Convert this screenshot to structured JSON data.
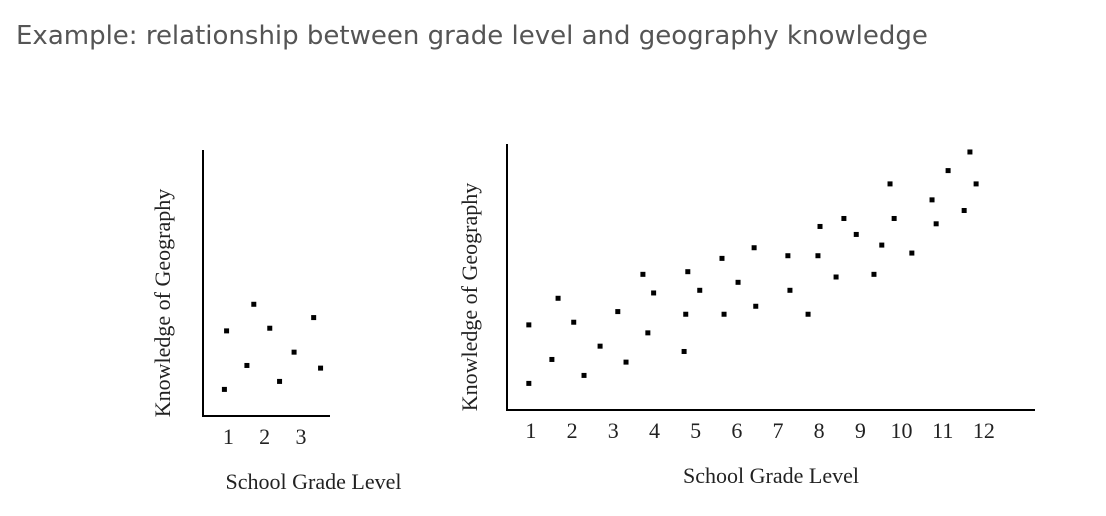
{
  "header": {
    "title": "Example: relationship between grade level and geography knowledge"
  },
  "chart_data": [
    {
      "type": "scatter",
      "color": "#000000",
      "xlabel": "School Grade Level",
      "ylabel": "Knowledge of Geography",
      "xlim": [
        0.3,
        3.8
      ],
      "xticks": [
        1,
        2,
        3
      ],
      "ylim": [
        0,
        100
      ],
      "x": [
        0.95,
        1.7,
        1.51,
        0.89,
        2.14,
        2.41,
        2.81,
        3.35,
        3.54
      ],
      "values": [
        32,
        42,
        19,
        10,
        33,
        13,
        24,
        37,
        18
      ]
    },
    {
      "type": "scatter",
      "color": "#000000",
      "xlabel": "School Grade Level",
      "ylabel": "Knowledge of Geography",
      "xlim": [
        0.42,
        13.24
      ],
      "xticks": [
        1,
        2,
        3,
        4,
        5,
        6,
        7,
        8,
        9,
        10,
        11,
        12
      ],
      "ylim": [
        0,
        100
      ],
      "x": [
        0.95,
        0.95,
        1.51,
        1.66,
        2.04,
        2.29,
        2.68,
        3.11,
        3.31,
        3.72,
        3.84,
        3.98,
        4.72,
        4.76,
        4.81,
        5.1,
        5.64,
        5.69,
        6.03,
        6.42,
        6.46,
        7.24,
        7.29,
        7.73,
        7.97,
        8.02,
        8.41,
        8.6,
        8.9,
        9.33,
        9.52,
        9.72,
        9.82,
        10.25,
        10.74,
        10.84,
        11.13,
        11.52,
        11.66,
        11.81
      ],
      "values": [
        32,
        10,
        19,
        42,
        33,
        13,
        24,
        37,
        18,
        51,
        29,
        44,
        22,
        36,
        52,
        45,
        57,
        36,
        48,
        61,
        39,
        58,
        45,
        36,
        58,
        69,
        50,
        72,
        66,
        51,
        62,
        85,
        72,
        59,
        79,
        70,
        90,
        75,
        97,
        85
      ]
    }
  ]
}
